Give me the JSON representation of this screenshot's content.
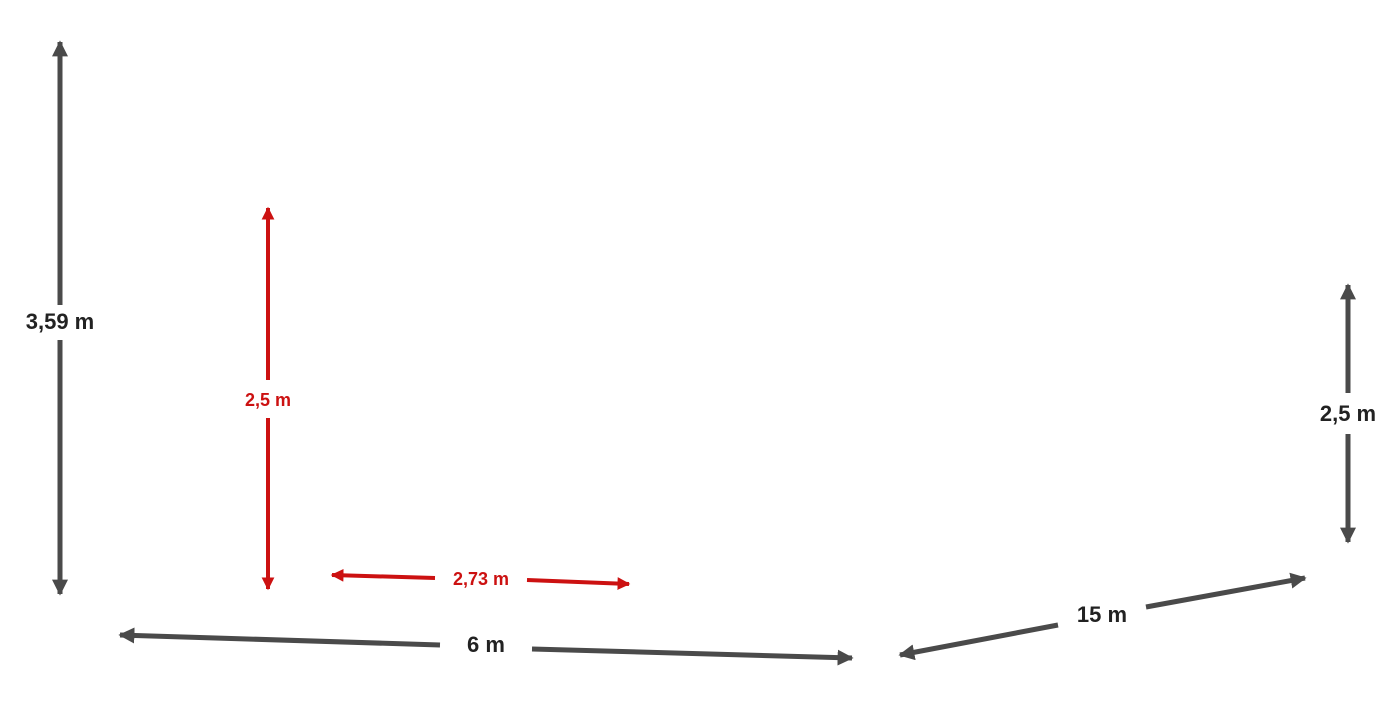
{
  "colors": {
    "dimension": "#4a4a4a",
    "highlight": "#cc1111",
    "background": "#ffffff"
  },
  "dimensions": {
    "total_height": "3,59 m",
    "inner_height": "2,5 m",
    "inner_width": "2,73 m",
    "front_length": "6 m",
    "side_length": "15 m",
    "right_height": "2,5 m"
  }
}
